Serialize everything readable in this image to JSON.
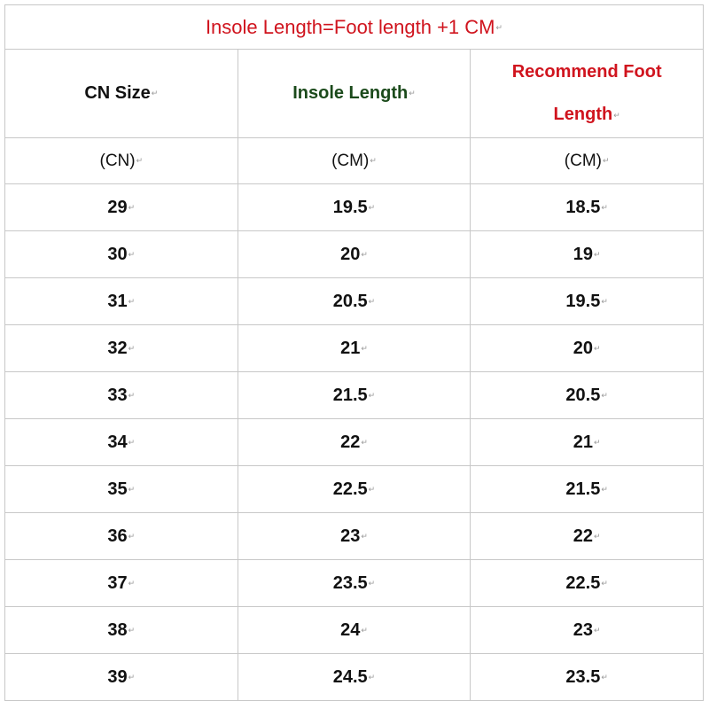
{
  "title": "Insole Length=Foot length +1 CM",
  "headers": [
    "CN Size",
    "Insole Length",
    "Recommend Foot Length"
  ],
  "header_colors": {
    "title": "#d0141e",
    "cn_size": "#111111",
    "insole_length": "#1b4a1b",
    "recommend_foot_length": "#d0141e"
  },
  "units": [
    "(CN)",
    "(CM)",
    "(CM)"
  ],
  "rows": [
    [
      "29",
      "19.5",
      "18.5"
    ],
    [
      "30",
      "20",
      "19"
    ],
    [
      "31",
      "20.5",
      "19.5"
    ],
    [
      "32",
      "21",
      "20"
    ],
    [
      "33",
      "21.5",
      "20.5"
    ],
    [
      "34",
      "22",
      "21"
    ],
    [
      "35",
      "22.5",
      "21.5"
    ],
    [
      "36",
      "23",
      "22"
    ],
    [
      "37",
      "23.5",
      "22.5"
    ],
    [
      "38",
      "24",
      "23"
    ],
    [
      "39",
      "24.5",
      "23.5"
    ]
  ]
}
